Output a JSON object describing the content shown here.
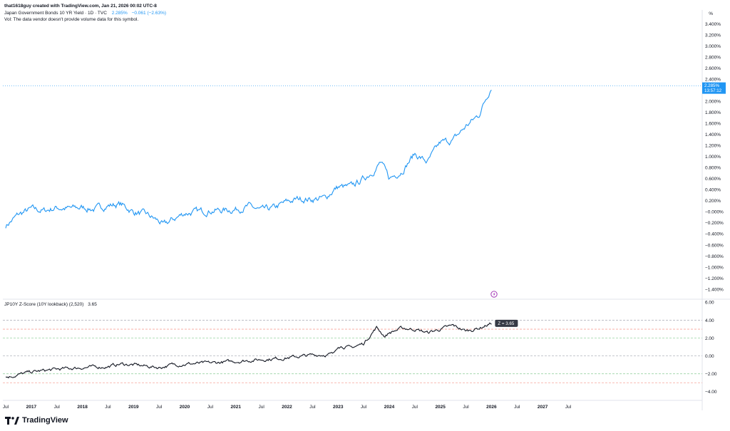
{
  "header": {
    "attribution": "that1618guy created with TradingView.com, Jan 21, 2026 00:02 UTC-8",
    "symbol_legend": "Japan Government Bonds 10 YR Yield · 1D · TVC",
    "legend_value": "2.285%",
    "legend_change": "−0.061 (−2.63%)",
    "volume_note": "Vol: The data vendor doesn't provide volume data for this symbol."
  },
  "price_axis": {
    "unit": "%",
    "labels": [
      "3.400%",
      "3.200%",
      "3.000%",
      "2.800%",
      "2.600%",
      "2.400%",
      "2.200%",
      "2.000%",
      "1.800%",
      "1.600%",
      "1.400%",
      "1.200%",
      "1.000%",
      "0.800%",
      "0.600%",
      "0.400%",
      "0.200%",
      "−0.000%",
      "−0.200%",
      "−0.400%",
      "−0.600%",
      "−0.800%",
      "−1.000%",
      "−1.200%",
      "−1.400%"
    ],
    "current_value_tag": "2.285%",
    "countdown_tag": "13:57:12"
  },
  "zscore_panel": {
    "legend": "JP10Y Z-Score (10Y lookback) (2,520)",
    "legend_value": "3.65",
    "axis_labels": [
      "6.00",
      "4.00",
      "2.00",
      "0.00",
      "−2.00",
      "−4.00"
    ],
    "value_tag": "Z = 3.65"
  },
  "time_axis": {
    "labels": [
      "Jul",
      "2017",
      "Jul",
      "2018",
      "Jul",
      "2019",
      "Jul",
      "2020",
      "Jul",
      "2021",
      "Jul",
      "2022",
      "Jul",
      "2023",
      "Jul",
      "2024",
      "Jul",
      "2025",
      "Jul",
      "2026",
      "Jul",
      "2027",
      "Jul"
    ]
  },
  "brand": {
    "name": "TradingView",
    "icon": "tradingview-logo-icon"
  },
  "colors": {
    "yield_line": "#2196f3",
    "zscore_line": "#131722",
    "tag_bg": "#2196f3",
    "ztag_bg": "#363a45",
    "ref_red": "#f7a39a",
    "ref_green": "#9ad3a3",
    "ref_grey": "#b2b5be"
  },
  "chart_data": [
    {
      "type": "line",
      "title": "Japan Government Bonds 10 YR Yield · 1D · TVC",
      "ylabel": "%",
      "ylim": [
        -1.45,
        3.5
      ],
      "series": [
        {
          "name": "Japan Government Bonds 10 YR Yield",
          "x": [
            "2016-07",
            "2016-10",
            "2017-01",
            "2017-04",
            "2017-07",
            "2017-10",
            "2018-01",
            "2018-04",
            "2018-07",
            "2018-10",
            "2019-01",
            "2019-04",
            "2019-07",
            "2019-08",
            "2019-10",
            "2020-01",
            "2020-04",
            "2020-07",
            "2020-10",
            "2021-01",
            "2021-04",
            "2021-07",
            "2021-10",
            "2022-01",
            "2022-04",
            "2022-07",
            "2022-10",
            "2022-12",
            "2023-01",
            "2023-04",
            "2023-07",
            "2023-10",
            "2023-11",
            "2024-01",
            "2024-04",
            "2024-07",
            "2024-10",
            "2025-01",
            "2025-04",
            "2025-07",
            "2025-10",
            "2026-01"
          ],
          "values": [
            -0.25,
            -0.05,
            0.05,
            0.02,
            0.08,
            0.06,
            0.08,
            0.05,
            0.12,
            0.14,
            0.0,
            -0.05,
            -0.17,
            -0.25,
            -0.15,
            -0.02,
            0.0,
            0.03,
            0.03,
            0.05,
            0.1,
            0.02,
            0.07,
            0.18,
            0.24,
            0.23,
            0.25,
            0.4,
            0.45,
            0.45,
            0.6,
            0.8,
            0.9,
            0.6,
            0.75,
            1.05,
            0.9,
            1.25,
            1.3,
            1.55,
            1.75,
            2.28
          ]
        }
      ]
    },
    {
      "type": "line",
      "title": "JP10Y Z-Score (10Y lookback) (2,520)",
      "ylim": [
        -4.5,
        6.2
      ],
      "series": [
        {
          "name": "JP10Y Z-Score",
          "x": [
            "2016-07",
            "2016-10",
            "2017-01",
            "2017-07",
            "2018-01",
            "2018-07",
            "2018-10",
            "2019-01",
            "2019-07",
            "2019-10",
            "2020-01",
            "2020-07",
            "2021-01",
            "2021-07",
            "2022-01",
            "2022-07",
            "2022-12",
            "2023-01",
            "2023-04",
            "2023-07",
            "2023-10",
            "2023-12",
            "2024-01",
            "2024-04",
            "2024-07",
            "2024-10",
            "2025-01",
            "2025-04",
            "2025-07",
            "2025-10",
            "2026-01"
          ],
          "values": [
            -2.4,
            -2.1,
            -1.8,
            -1.5,
            -1.3,
            -1.2,
            -0.9,
            -1.0,
            -1.3,
            -1.0,
            -0.9,
            -0.8,
            -0.6,
            -0.4,
            -0.2,
            0.1,
            0.2,
            1.2,
            0.9,
            1.4,
            3.2,
            2.2,
            2.6,
            3.1,
            3.0,
            2.6,
            3.0,
            3.4,
            2.8,
            3.1,
            3.65
          ]
        }
      ],
      "reference_lines": [
        4,
        3,
        2,
        0,
        -2,
        -3
      ]
    }
  ]
}
